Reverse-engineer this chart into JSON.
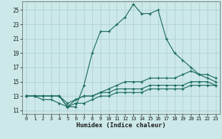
{
  "xlabel": "Humidex (Indice chaleur)",
  "bg_color": "#cce8e8",
  "grid_color": "#aacccc",
  "line_color": "#1a6b5a",
  "xlim": [
    -0.5,
    23.5
  ],
  "ylim": [
    10.5,
    26.2
  ],
  "yticks": [
    11,
    13,
    15,
    17,
    19,
    21,
    23,
    25
  ],
  "xticks": [
    0,
    1,
    2,
    3,
    4,
    5,
    6,
    7,
    8,
    9,
    10,
    11,
    12,
    13,
    14,
    15,
    16,
    17,
    18,
    19,
    20,
    21,
    22,
    23
  ],
  "line1_x": [
    0,
    1,
    2,
    3,
    4,
    5,
    6,
    7,
    8,
    9,
    10,
    11,
    12,
    13,
    14,
    15,
    16,
    17,
    18,
    19,
    20,
    21,
    22,
    23
  ],
  "line1_y": [
    13,
    13,
    13,
    13,
    13,
    11.5,
    11.5,
    14.5,
    19,
    22,
    22,
    23,
    24,
    25.8,
    24.5,
    24.5,
    25,
    21,
    19,
    18,
    17,
    16,
    15.5,
    15
  ],
  "line2_x": [
    0,
    1,
    2,
    3,
    4,
    5,
    6,
    7,
    8,
    9,
    10,
    11,
    12,
    13,
    14,
    15,
    16,
    17,
    18,
    19,
    20,
    21,
    22,
    23
  ],
  "line2_y": [
    13,
    13,
    13,
    13,
    13,
    11.5,
    12.5,
    13,
    13,
    13.5,
    14,
    14.5,
    15,
    15,
    15,
    15.5,
    15.5,
    15.5,
    15.5,
    16,
    16.5,
    16,
    16,
    15.5
  ],
  "line3_x": [
    0,
    1,
    2,
    3,
    4,
    5,
    6,
    7,
    8,
    9,
    10,
    11,
    12,
    13,
    14,
    15,
    16,
    17,
    18,
    19,
    20,
    21,
    22,
    23
  ],
  "line3_y": [
    13,
    13,
    13,
    13,
    13,
    12,
    12.5,
    13,
    13,
    13.5,
    13.5,
    14,
    14,
    14,
    14,
    14.5,
    14.5,
    14.5,
    14.5,
    14.5,
    15,
    15,
    15,
    14.5
  ],
  "line4_x": [
    0,
    1,
    2,
    3,
    4,
    5,
    6,
    7,
    8,
    9,
    10,
    11,
    12,
    13,
    14,
    15,
    16,
    17,
    18,
    19,
    20,
    21,
    22,
    23
  ],
  "line4_y": [
    13,
    13,
    12.5,
    12.5,
    12,
    11.5,
    12,
    12,
    12.5,
    13,
    13,
    13.5,
    13.5,
    13.5,
    13.5,
    14,
    14,
    14,
    14,
    14,
    14.5,
    14.5,
    14.5,
    14.5
  ]
}
